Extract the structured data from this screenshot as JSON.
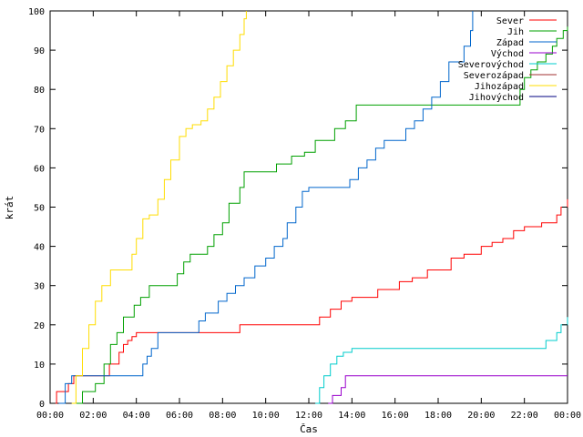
{
  "chart_data": {
    "type": "line",
    "title": "",
    "xlabel": "Čas",
    "ylabel": "krát",
    "xlim": [
      0,
      24
    ],
    "ylim": [
      0,
      100
    ],
    "x_ticks": [
      "00:00",
      "02:00",
      "04:00",
      "06:00",
      "08:00",
      "10:00",
      "12:00",
      "14:00",
      "16:00",
      "18:00",
      "20:00",
      "22:00",
      "00:00"
    ],
    "y_ticks": [
      0,
      10,
      20,
      30,
      40,
      50,
      60,
      70,
      80,
      90,
      100
    ],
    "grid": false,
    "legend_position": "top-right",
    "series": [
      {
        "name": "Sever",
        "color": "#ff0000",
        "x": [
          0.25,
          0.3,
          0.75,
          0.85,
          1.1,
          2.6,
          2.75,
          3.2,
          3.4,
          3.6,
          3.8,
          4.0,
          8.7,
          8.8,
          12.0,
          12.5,
          13.0,
          13.5,
          14.0,
          14.8,
          15.2,
          16.2,
          16.8,
          17.5,
          18.5,
          18.6,
          19.2,
          20.0,
          20.5,
          21.0,
          21.5,
          22.0,
          22.8,
          23.5,
          23.7,
          24.0
        ],
        "y": [
          0,
          3,
          3,
          5,
          7,
          7,
          10,
          13,
          15,
          16,
          17,
          18,
          18,
          20,
          20,
          22,
          24,
          26,
          27,
          27,
          29,
          31,
          32,
          34,
          34,
          37,
          38,
          40,
          41,
          42,
          44,
          45,
          46,
          48,
          50,
          52
        ]
      },
      {
        "name": "Jih",
        "color": "#00a000",
        "x": [
          1.2,
          1.5,
          2.1,
          2.5,
          2.8,
          3.1,
          3.4,
          3.9,
          4.2,
          4.6,
          5.5,
          5.9,
          6.2,
          6.5,
          7.3,
          7.6,
          8.0,
          8.3,
          8.8,
          9.0,
          10.2,
          10.5,
          11.2,
          11.8,
          12.3,
          13.2,
          13.7,
          14.2,
          18.2,
          21.6,
          21.8,
          22.0,
          22.3,
          22.6,
          23.0,
          23.3,
          23.5,
          23.8,
          24.0
        ],
        "y": [
          0,
          3,
          5,
          10,
          15,
          18,
          22,
          25,
          27,
          30,
          30,
          33,
          36,
          38,
          40,
          43,
          46,
          51,
          55,
          59,
          59,
          61,
          63,
          64,
          67,
          70,
          72,
          76,
          76,
          76,
          80,
          83,
          85,
          87,
          89,
          91,
          93,
          95,
          96
        ]
      },
      {
        "name": "Západ",
        "color": "#0066cc",
        "x": [
          0.4,
          0.7,
          1.0,
          1.5,
          2.0,
          3.5,
          4.2,
          4.3,
          4.5,
          4.7,
          5.0,
          6.5,
          6.9,
          7.2,
          7.8,
          8.2,
          8.6,
          9.0,
          9.5,
          10.0,
          10.4,
          10.8,
          11.0,
          11.4,
          11.7,
          12.0,
          13.5,
          13.9,
          14.3,
          14.7,
          15.1,
          15.5,
          16.0,
          16.5,
          16.9,
          17.3,
          17.7,
          18.1,
          18.5,
          18.8,
          19.2,
          19.5,
          19.6
        ],
        "y": [
          0,
          5,
          7,
          7,
          7,
          7,
          7,
          10,
          12,
          14,
          18,
          18,
          21,
          23,
          26,
          28,
          30,
          32,
          35,
          37,
          40,
          42,
          46,
          50,
          54,
          55,
          55,
          57,
          60,
          62,
          65,
          67,
          67,
          70,
          72,
          75,
          78,
          82,
          87,
          87,
          91,
          95,
          100
        ]
      },
      {
        "name": "Východ",
        "color": "#9900cc",
        "x": [
          12.9,
          13.1,
          13.5,
          13.7,
          24.0
        ],
        "y": [
          0,
          2,
          4,
          7,
          7
        ]
      },
      {
        "name": "Severovýchod",
        "color": "#00cccc",
        "x": [
          12.3,
          12.5,
          12.7,
          13.0,
          13.3,
          13.6,
          14.0,
          22.7,
          23.0,
          23.5,
          23.7,
          24.0
        ],
        "y": [
          0,
          4,
          7,
          10,
          12,
          13,
          14,
          14,
          16,
          18,
          20,
          22
        ]
      },
      {
        "name": "Severozápad",
        "color": "#a03030",
        "x": [],
        "y": []
      },
      {
        "name": "Jihozápad",
        "color": "#ffdd00",
        "x": [
          1.0,
          1.2,
          1.5,
          1.8,
          2.1,
          2.4,
          2.8,
          3.5,
          3.8,
          4.0,
          4.3,
          4.6,
          5.0,
          5.3,
          5.6,
          6.0,
          6.3,
          6.6,
          7.0,
          7.3,
          7.6,
          7.9,
          8.2,
          8.5,
          8.8,
          9.0,
          9.1
        ],
        "y": [
          0,
          7,
          14,
          20,
          26,
          30,
          34,
          34,
          38,
          42,
          47,
          48,
          52,
          57,
          62,
          68,
          70,
          71,
          72,
          75,
          78,
          82,
          86,
          90,
          94,
          98,
          100
        ]
      },
      {
        "name": "Jihovýchod",
        "color": "#000080",
        "x": [],
        "y": []
      }
    ]
  }
}
